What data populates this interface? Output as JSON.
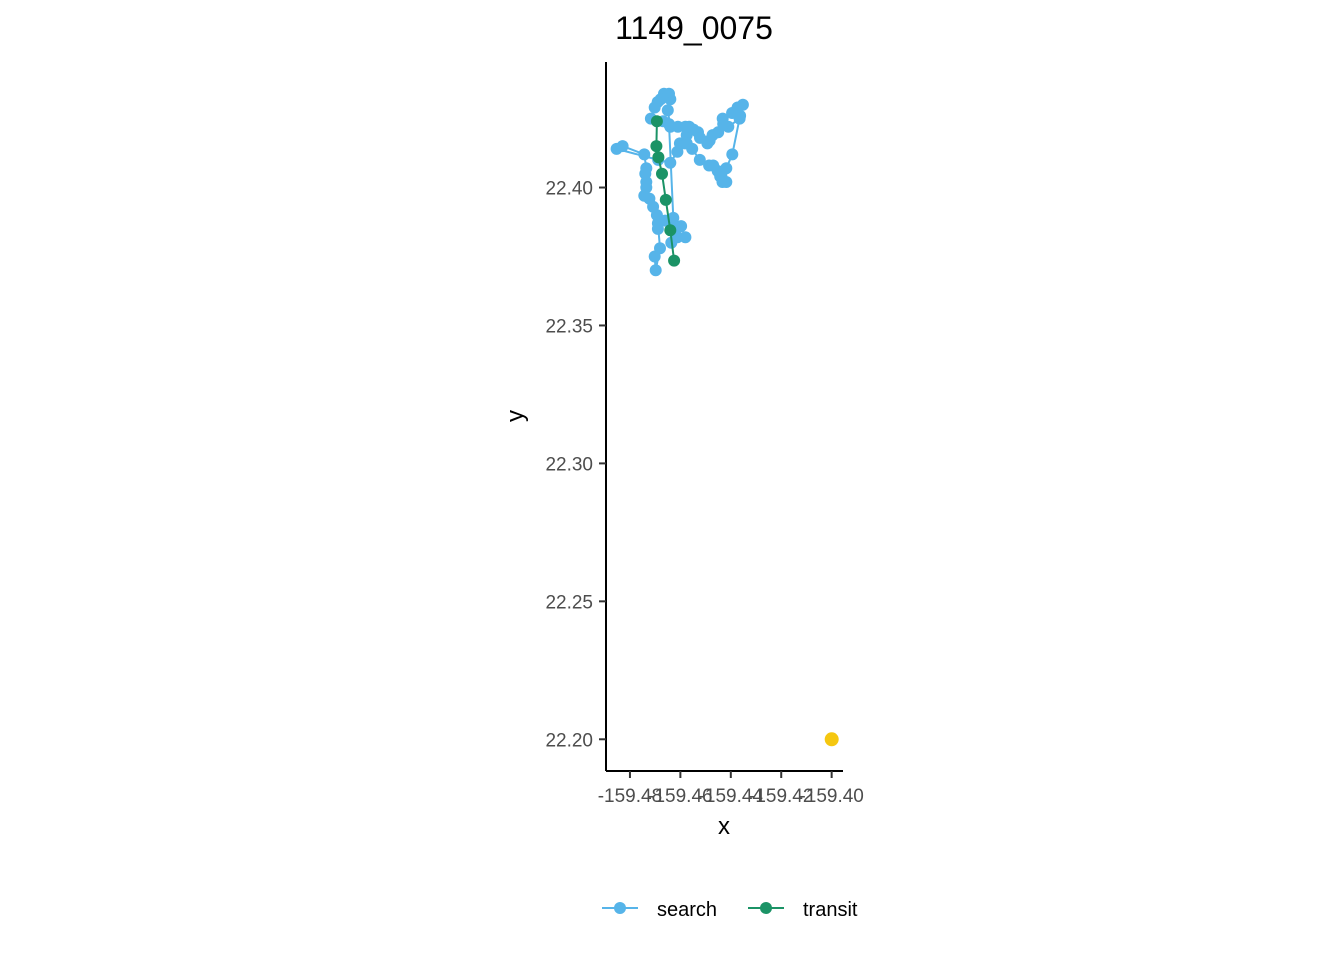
{
  "chart_data": {
    "type": "scatter",
    "title": "1149_0075",
    "xlabel": "x",
    "ylabel": "y",
    "xlim": [
      -159.4895,
      -159.3955
    ],
    "ylim": [
      22.1885,
      22.4455
    ],
    "x_ticks": [
      -159.48,
      -159.46,
      -159.44,
      -159.42,
      -159.4
    ],
    "x_tick_labels": [
      "-159.48",
      "-159.46",
      "-159.44",
      "-159.42",
      "-159.40"
    ],
    "y_ticks": [
      22.2,
      22.25,
      22.3,
      22.35,
      22.4
    ],
    "y_tick_labels": [
      "22.20",
      "22.25",
      "22.30",
      "22.35",
      "22.40"
    ],
    "grid": false,
    "legend_position": "bottom",
    "series": [
      {
        "name": "search",
        "color": "#56b4e9",
        "connected": true,
        "points": [
          [
            -159.4702,
            22.375
          ],
          [
            -159.4698,
            22.37
          ],
          [
            -159.4681,
            22.378
          ],
          [
            -159.4689,
            22.387
          ],
          [
            -159.4693,
            22.39
          ],
          [
            -159.4708,
            22.393
          ],
          [
            -159.4723,
            22.396
          ],
          [
            -159.4743,
            22.397
          ],
          [
            -159.4735,
            22.4
          ],
          [
            -159.4735,
            22.402
          ],
          [
            -159.4739,
            22.405
          ],
          [
            -159.4735,
            22.407
          ],
          [
            -159.4743,
            22.412
          ],
          [
            -159.4829,
            22.415
          ],
          [
            -159.4853,
            22.414
          ],
          [
            -159.4688,
            22.41
          ],
          [
            -159.464,
            22.409
          ],
          [
            -159.4612,
            22.413
          ],
          [
            -159.4602,
            22.416
          ],
          [
            -159.4584,
            22.416
          ],
          [
            -159.4575,
            22.419
          ],
          [
            -159.4565,
            22.422
          ],
          [
            -159.4575,
            22.416
          ],
          [
            -159.4553,
            22.414
          ],
          [
            -159.4523,
            22.41
          ],
          [
            -159.4486,
            22.408
          ],
          [
            -159.447,
            22.408
          ],
          [
            -159.4452,
            22.406
          ],
          [
            -159.4442,
            22.404
          ],
          [
            -159.4433,
            22.402
          ],
          [
            -159.4418,
            22.402
          ],
          [
            -159.4418,
            22.407
          ],
          [
            -159.4394,
            22.412
          ],
          [
            -159.4363,
            22.426
          ],
          [
            -159.4352,
            22.43
          ],
          [
            -159.4373,
            22.429
          ],
          [
            -159.4395,
            22.427
          ],
          [
            -159.4365,
            22.425
          ],
          [
            -159.441,
            22.422
          ],
          [
            -159.443,
            22.423
          ],
          [
            -159.4432,
            22.425
          ],
          [
            -159.445,
            22.42
          ],
          [
            -159.4472,
            22.419
          ],
          [
            -159.4484,
            22.417
          ],
          [
            -159.4493,
            22.416
          ],
          [
            -159.4522,
            22.418
          ],
          [
            -159.453,
            22.42
          ],
          [
            -159.4548,
            22.421
          ],
          [
            -159.458,
            22.422
          ],
          [
            -159.461,
            22.422
          ],
          [
            -159.464,
            22.422
          ],
          [
            -159.465,
            22.428
          ],
          [
            -159.464,
            22.432
          ],
          [
            -159.4645,
            22.434
          ],
          [
            -159.466,
            22.433
          ],
          [
            -159.4665,
            22.434
          ],
          [
            -159.4678,
            22.432
          ],
          [
            -159.469,
            22.431
          ],
          [
            -159.4702,
            22.429
          ],
          [
            -159.4717,
            22.425
          ],
          [
            -159.4668,
            22.424
          ],
          [
            -159.4645,
            22.423
          ],
          [
            -159.4628,
            22.389
          ],
          [
            -159.462,
            22.386
          ],
          [
            -159.4625,
            22.384
          ],
          [
            -159.4636,
            22.38
          ],
          [
            -159.4612,
            22.382
          ],
          [
            -159.4597,
            22.386
          ],
          [
            -159.458,
            22.382
          ],
          [
            -159.466,
            22.388
          ],
          [
            -159.4689,
            22.385
          ]
        ]
      },
      {
        "name": "transit",
        "color": "#1b9366",
        "connected": true,
        "points": [
          [
            -159.4693,
            22.424
          ],
          [
            -159.4695,
            22.415
          ],
          [
            -159.4687,
            22.411
          ],
          [
            -159.4673,
            22.405
          ],
          [
            -159.4658,
            22.3955
          ],
          [
            -159.464,
            22.3845
          ],
          [
            -159.4625,
            22.3735
          ]
        ]
      },
      {
        "name": "",
        "color": "#f5c710",
        "connected": false,
        "points": [
          [
            -159.4,
            22.2
          ]
        ]
      }
    ]
  },
  "legend": {
    "items": [
      {
        "label": "search",
        "color": "#56b4e9"
      },
      {
        "label": "transit",
        "color": "#1b9366"
      }
    ]
  }
}
